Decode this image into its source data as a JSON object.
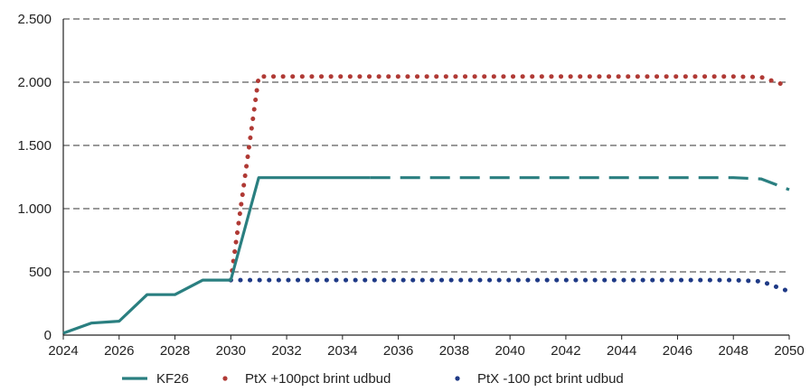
{
  "chart_data": {
    "type": "line",
    "title": "",
    "xlabel": "",
    "ylabel": "",
    "xlim": [
      2024,
      2050
    ],
    "ylim": [
      0,
      2500
    ],
    "x_ticks": [
      2024,
      2026,
      2028,
      2030,
      2032,
      2034,
      2036,
      2038,
      2040,
      2042,
      2044,
      2046,
      2048,
      2050
    ],
    "x_tick_labels": [
      "2024",
      "2026",
      "2028",
      "2030",
      "2032",
      "2034",
      "2036",
      "2038",
      "2040",
      "2042",
      "2044",
      "2046",
      "2048",
      "2050"
    ],
    "y_ticks": [
      0,
      500,
      1000,
      1500,
      2000,
      2500
    ],
    "y_tick_labels": [
      "0",
      "500",
      "1.000",
      "1.500",
      "2.000",
      "2.500"
    ],
    "grid": "horizontal dashed",
    "legend_position": "bottom",
    "x": [
      2024,
      2025,
      2026,
      2027,
      2028,
      2029,
      2030,
      2031,
      2032,
      2033,
      2034,
      2035,
      2036,
      2037,
      2038,
      2039,
      2040,
      2041,
      2042,
      2043,
      2044,
      2045,
      2046,
      2047,
      2048,
      2049,
      2050
    ],
    "series": [
      {
        "name": "KF26",
        "color": "#2a7f80",
        "style": "solid-then-dashed",
        "dash_from_x": 2035,
        "values": [
          15,
          95,
          110,
          320,
          320,
          435,
          435,
          1245,
          1245,
          1245,
          1245,
          1245,
          1245,
          1245,
          1245,
          1245,
          1245,
          1245,
          1245,
          1245,
          1245,
          1245,
          1245,
          1245,
          1245,
          1235,
          1150
        ]
      },
      {
        "name": "PtX +100pct brint udbud",
        "color": "#b03a35",
        "style": "dotted",
        "values": [
          null,
          null,
          null,
          null,
          null,
          null,
          435,
          2045,
          2045,
          2045,
          2045,
          2045,
          2045,
          2045,
          2045,
          2045,
          2045,
          2045,
          2045,
          2045,
          2045,
          2045,
          2045,
          2045,
          2045,
          2040,
          1965
        ]
      },
      {
        "name": "PtX -100 pct brint udbud",
        "color": "#1f3a86",
        "style": "dotted",
        "values": [
          null,
          null,
          null,
          null,
          null,
          null,
          435,
          435,
          435,
          435,
          435,
          435,
          435,
          435,
          435,
          435,
          435,
          435,
          435,
          435,
          435,
          435,
          435,
          435,
          435,
          425,
          345
        ]
      }
    ]
  }
}
